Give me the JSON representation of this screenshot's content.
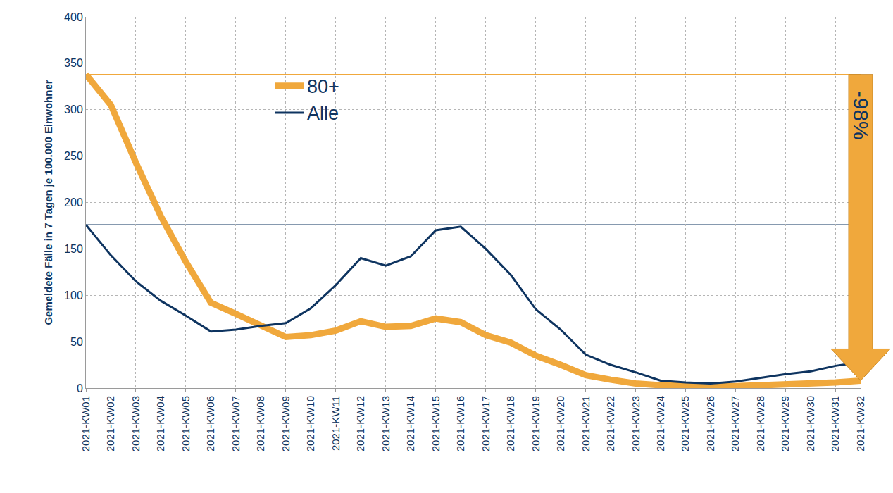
{
  "chart_data": {
    "type": "line",
    "categories": [
      "2021-KW01",
      "2021-KW02",
      "2021-KW03",
      "2021-KW04",
      "2021-KW05",
      "2021-KW06",
      "2021-KW07",
      "2021-KW08",
      "2021-KW09",
      "2021-KW10",
      "2021-KW11",
      "2021-KW12",
      "2021-KW13",
      "2021-KW14",
      "2021-KW15",
      "2021-KW16",
      "2021-KW17",
      "2021-KW18",
      "2021-KW19",
      "2021-KW20",
      "2021-KW21",
      "2021-KW22",
      "2021-KW23",
      "2021-KW24",
      "2021-KW25",
      "2021-KW26",
      "2021-KW27",
      "2021-KW28",
      "2021-KW29",
      "2021-KW30",
      "2021-KW31",
      "2021-KW32"
    ],
    "series": [
      {
        "name": "80+",
        "color": "#F0A83C",
        "values": [
          338,
          305,
          243,
          185,
          136,
          92,
          80,
          67,
          55,
          57,
          62,
          72,
          66,
          67,
          75,
          71,
          57,
          49,
          35,
          25,
          14,
          9,
          5,
          3,
          2,
          2,
          2,
          3,
          3,
          4,
          6,
          8
        ]
      },
      {
        "name": "Alle",
        "color": "#0E3460",
        "values": [
          176,
          143,
          115,
          94,
          78,
          61,
          63,
          67,
          70,
          86,
          111,
          140,
          132,
          142,
          170,
          174,
          150,
          122,
          85,
          63,
          36,
          25,
          17,
          8,
          6,
          5,
          7,
          11,
          15,
          18,
          24,
          28
        ]
      }
    ],
    "y_label": "Gemeldete Fälle in 7 Tagen je 100.000 Einwohner",
    "ylim": [
      0,
      400
    ],
    "yticks": [
      0,
      50,
      100,
      150,
      200,
      250,
      300,
      350,
      400
    ],
    "grid": true,
    "legend": "upper left",
    "annotations": [
      {
        "text": "-98%"
      }
    ]
  }
}
